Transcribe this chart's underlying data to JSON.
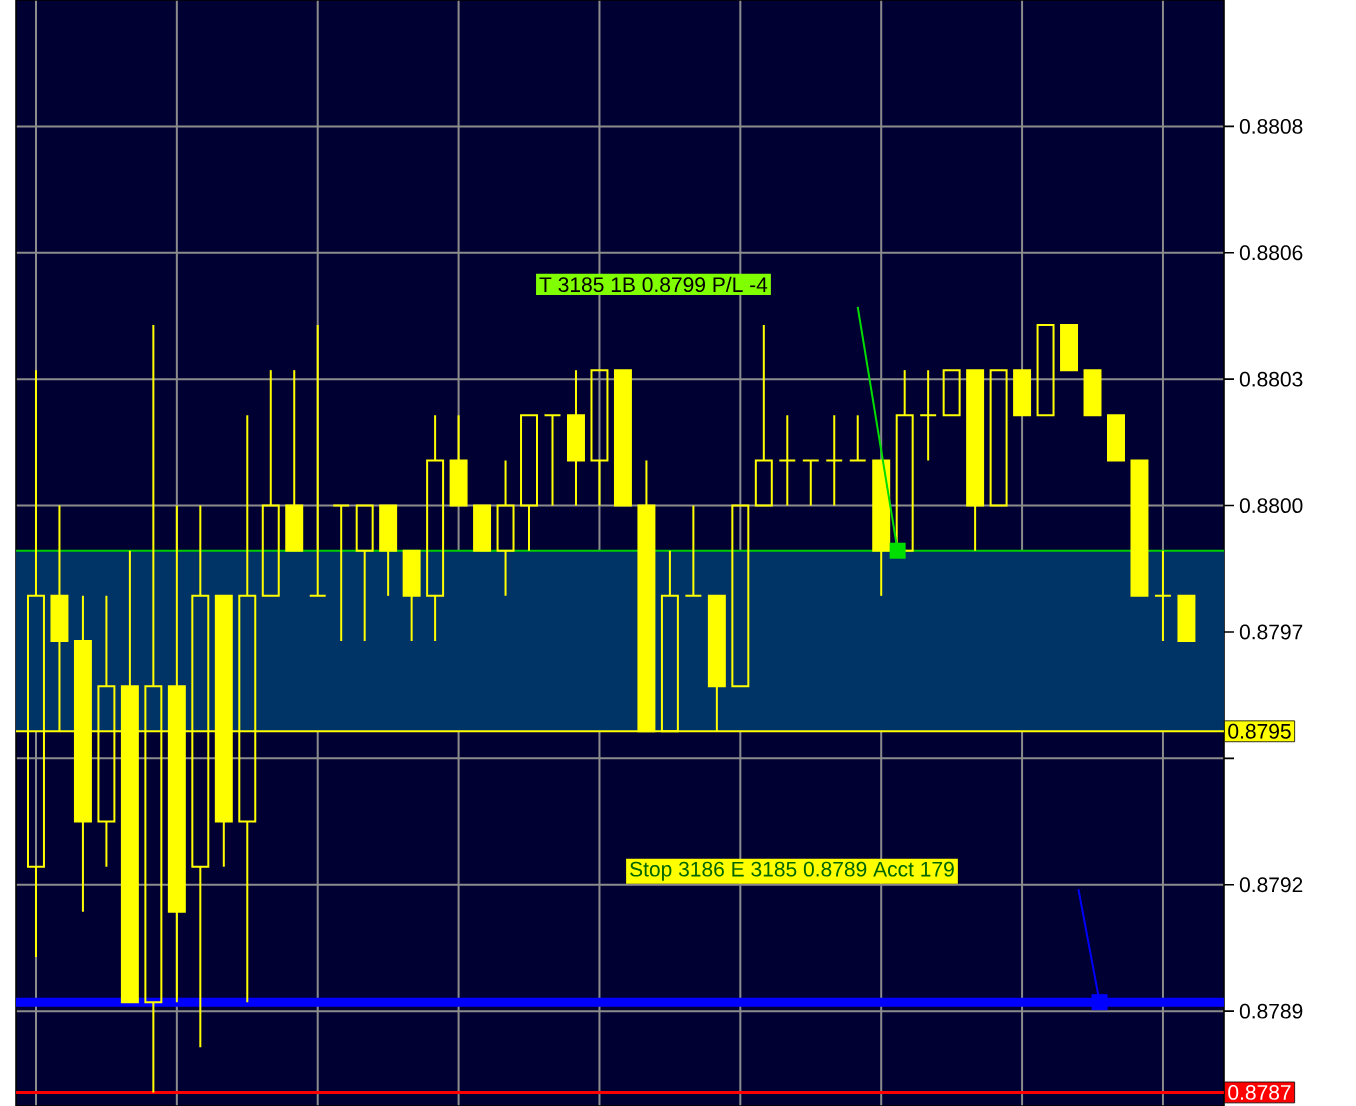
{
  "chart_data": {
    "type": "candlestick",
    "categories": [
      null,
      null,
      null,
      null,
      null,
      null,
      null,
      null,
      null,
      null,
      null,
      null,
      null,
      null,
      null,
      null,
      null,
      null,
      null,
      null,
      null,
      null,
      null,
      null,
      null,
      null,
      null,
      null,
      null,
      null,
      null,
      null,
      null,
      null,
      null,
      null,
      null,
      null,
      null,
      null,
      null,
      null,
      null,
      null,
      null,
      null,
      null,
      null,
      null,
      null
    ],
    "ohlc": [
      [
        0.8792,
        0.8803,
        0.879,
        0.8798
      ],
      [
        0.8798,
        0.88,
        0.8795,
        0.8797
      ],
      [
        0.8797,
        0.8798,
        0.8791,
        0.8793
      ],
      [
        0.8793,
        0.8798,
        0.8792,
        0.8796
      ],
      [
        0.8796,
        0.8799,
        0.8789,
        0.8789
      ],
      [
        0.8789,
        0.8804,
        0.8787,
        0.8796
      ],
      [
        0.8796,
        0.88,
        0.8789,
        0.8791
      ],
      [
        0.8792,
        0.88,
        0.8788,
        0.8798
      ],
      [
        0.8798,
        0.8798,
        0.8792,
        0.8793
      ],
      [
        0.8793,
        0.8802,
        0.8789,
        0.8798
      ],
      [
        0.8798,
        0.8803,
        0.8798,
        0.88
      ],
      [
        0.88,
        0.8803,
        0.8799,
        0.8799
      ],
      [
        0.8798,
        0.8804,
        0.8798,
        0.8798
      ],
      [
        0.88,
        0.88,
        0.8797,
        0.88
      ],
      [
        0.8799,
        0.88,
        0.8797,
        0.88
      ],
      [
        0.88,
        0.88,
        0.8798,
        0.8799
      ],
      [
        0.8799,
        0.8799,
        0.8797,
        0.8798
      ],
      [
        0.8798,
        0.8802,
        0.8797,
        0.8801
      ],
      [
        0.8801,
        0.8802,
        0.88,
        0.88
      ],
      [
        0.88,
        0.88,
        0.8799,
        0.8799
      ],
      [
        0.8799,
        0.8801,
        0.8798,
        0.88
      ],
      [
        0.88,
        0.8802,
        0.8799,
        0.8802
      ],
      [
        0.8802,
        0.8802,
        0.88,
        0.8802
      ],
      [
        0.8802,
        0.8803,
        0.88,
        0.8801
      ],
      [
        0.8801,
        0.8803,
        0.88,
        0.8803
      ],
      [
        0.8803,
        0.8803,
        0.88,
        0.88
      ],
      [
        0.88,
        0.8801,
        0.8795,
        0.8795
      ],
      [
        0.8795,
        0.8799,
        0.8795,
        0.8798
      ],
      [
        0.8798,
        0.88,
        0.8798,
        0.8798
      ],
      [
        0.8798,
        0.8798,
        0.8795,
        0.8796
      ],
      [
        0.8796,
        0.88,
        0.8796,
        0.88
      ],
      [
        0.88,
        0.8804,
        0.88,
        0.8801
      ],
      [
        0.8801,
        0.8802,
        0.88,
        0.8801
      ],
      [
        0.8801,
        0.8801,
        0.88,
        0.8801
      ],
      [
        0.8801,
        0.8802,
        0.88,
        0.8801
      ],
      [
        0.8801,
        0.8802,
        0.8801,
        0.8801
      ],
      [
        0.8801,
        0.8801,
        0.8798,
        0.8799
      ],
      [
        0.8799,
        0.8803,
        0.8799,
        0.8802
      ],
      [
        0.8802,
        0.8803,
        0.8801,
        0.8802
      ],
      [
        0.8802,
        0.8803,
        0.8802,
        0.8803
      ],
      [
        0.8803,
        0.8803,
        0.8799,
        0.88
      ],
      [
        0.88,
        0.8803,
        0.88,
        0.8803
      ],
      [
        0.8803,
        0.8803,
        0.8802,
        0.8802
      ],
      [
        0.8802,
        0.8804,
        0.8802,
        0.8804
      ],
      [
        0.8804,
        0.8804,
        0.8803,
        0.8803
      ],
      [
        0.8803,
        0.8803,
        0.8802,
        0.8802
      ],
      [
        0.8802,
        0.8802,
        0.8801,
        0.8801
      ],
      [
        0.8801,
        0.8801,
        0.8798,
        0.8798
      ],
      [
        0.8798,
        0.8799,
        0.8797,
        0.8798
      ],
      [
        0.8798,
        0.8798,
        0.8797,
        0.8797
      ]
    ],
    "color": "#ffff00",
    "ylim": [
      0.87867,
      0.88112
    ],
    "yticks": [
      {
        "value": 0.88084,
        "label": "0.8808"
      },
      {
        "value": 0.88056,
        "label": "0.8806"
      },
      {
        "value": 0.88028,
        "label": "0.8803"
      },
      {
        "value": 0.88,
        "label": "0.8800"
      },
      {
        "value": 0.87972,
        "label": "0.8797"
      },
      {
        "value": 0.87944,
        "label": null
      },
      {
        "value": 0.87916,
        "label": "0.8792"
      },
      {
        "value": 0.87888,
        "label": "0.8789"
      }
    ],
    "grid": true,
    "ref_lines": [
      {
        "axis": "y",
        "value": 0.8799,
        "color": "#00cc00"
      },
      {
        "axis": "y",
        "value": 0.8795,
        "label": "0.8795",
        "color": "#ffff00"
      },
      {
        "axis": "y",
        "value": 0.8789,
        "color": "#0000ff"
      },
      {
        "axis": "y",
        "value": 0.8787,
        "label": "0.8787",
        "color": "#ff0000"
      }
    ],
    "bands": [
      {
        "axis": "y",
        "from": 0.8795,
        "to": 0.8799,
        "color": "#003366"
      }
    ],
    "annotations": [
      "T 3185 1B 0.8799 P/L -4",
      "Stop 3186 E 3185 0.8789 Acct 179"
    ]
  }
}
